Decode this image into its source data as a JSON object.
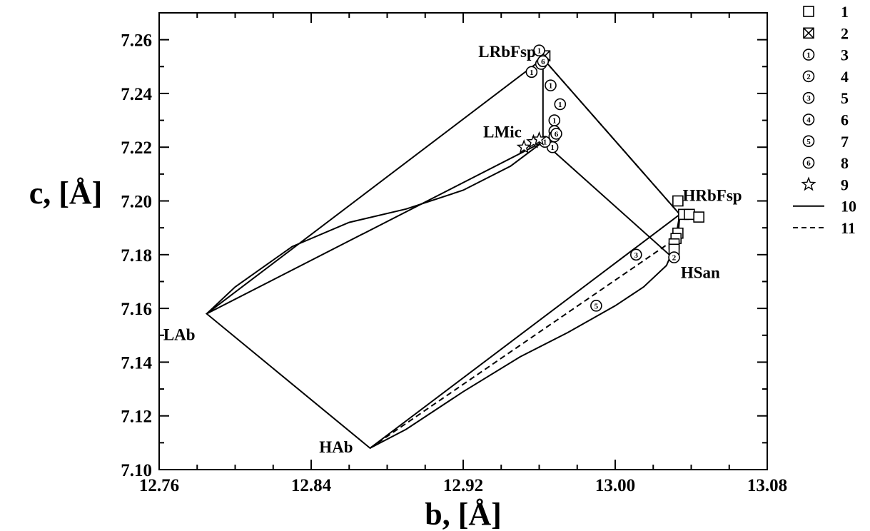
{
  "chart_data": {
    "type": "scatter",
    "xlabel": "b, [Å]",
    "ylabel": "c, [Å]",
    "xlim": [
      12.76,
      13.08
    ],
    "ylim": [
      7.1,
      7.27
    ],
    "x_major_ticks": [
      12.76,
      12.84,
      12.92,
      13.0,
      13.08
    ],
    "x_tick_labels": [
      "12.76",
      "12.84",
      "12.92",
      "13.00",
      "13.08"
    ],
    "y_major_ticks": [
      7.1,
      7.12,
      7.14,
      7.16,
      7.18,
      7.2,
      7.22,
      7.24,
      7.26
    ],
    "y_tick_labels": [
      "7.10",
      "7.12",
      "7.14",
      "7.16",
      "7.18",
      "7.20",
      "7.22",
      "7.24",
      "7.26"
    ],
    "grid": false,
    "legend_position": "right, outside plot",
    "end_member_labels": [
      {
        "text": "LRbFsp",
        "x": 12.962,
        "y": 7.253
      },
      {
        "text": "LMic",
        "x": 12.962,
        "y": 7.222
      },
      {
        "text": "HRbFsp",
        "x": 13.034,
        "y": 7.195
      },
      {
        "text": "HSan",
        "x": 13.03,
        "y": 7.179
      },
      {
        "text": "LAb",
        "x": 12.785,
        "y": 7.158
      },
      {
        "text": "HAb",
        "x": 12.871,
        "y": 7.108
      }
    ],
    "series": [
      {
        "name": "1",
        "marker": "square",
        "points": [
          [
            13.033,
            7.2
          ],
          [
            13.036,
            7.195
          ],
          [
            13.039,
            7.195
          ],
          [
            13.044,
            7.194
          ],
          [
            13.033,
            7.188
          ],
          [
            13.032,
            7.186
          ],
          [
            13.031,
            7.184
          ],
          [
            13.031,
            7.182
          ]
        ]
      },
      {
        "name": "2",
        "marker": "square-x",
        "points": [
          [
            12.963,
            7.254
          ]
        ]
      },
      {
        "name": "3",
        "marker": "circled",
        "digit": "1",
        "points": [
          [
            12.96,
            7.256
          ],
          [
            12.956,
            7.248
          ],
          [
            12.961,
            7.251
          ],
          [
            12.966,
            7.243
          ],
          [
            12.971,
            7.236
          ],
          [
            12.968,
            7.23
          ],
          [
            12.968,
            7.226
          ],
          [
            12.967,
            7.22
          ],
          [
            12.963,
            7.222
          ]
        ]
      },
      {
        "name": "4",
        "marker": "circled",
        "digit": "2",
        "points": [
          [
            13.031,
            7.179
          ]
        ]
      },
      {
        "name": "5",
        "marker": "circled",
        "digit": "3",
        "points": [
          [
            13.011,
            7.18
          ]
        ]
      },
      {
        "name": "6",
        "marker": "circled",
        "digit": "4",
        "points": [
          [
            12.968,
            7.224
          ]
        ]
      },
      {
        "name": "7",
        "marker": "circled",
        "digit": "5",
        "points": [
          [
            12.99,
            7.161
          ]
        ]
      },
      {
        "name": "8",
        "marker": "circled",
        "digit": "6",
        "points": [
          [
            12.962,
            7.252
          ],
          [
            12.969,
            7.225
          ]
        ]
      },
      {
        "name": "9",
        "marker": "star",
        "points": [
          [
            12.952,
            7.22
          ],
          [
            12.957,
            7.222
          ],
          [
            12.96,
            7.223
          ]
        ]
      },
      {
        "name": "10",
        "marker": "line-solid",
        "lines": [
          [
            [
              12.785,
              7.158
            ],
            [
              12.962,
              7.253
            ],
            [
              13.034,
              7.195
            ],
            [
              13.03,
              7.179
            ],
            [
              12.962,
              7.222
            ],
            [
              12.785,
              7.158
            ],
            [
              12.871,
              7.108
            ],
            [
              13.034,
              7.195
            ]
          ],
          [
            [
              12.962,
              7.253
            ],
            [
              12.962,
              7.232
            ],
            [
              12.962,
              7.222
            ]
          ],
          [
            [
              12.785,
              7.158
            ],
            [
              12.8,
              7.168
            ],
            [
              12.83,
              7.183
            ],
            [
              12.86,
              7.192
            ],
            [
              12.89,
              7.197
            ],
            [
              12.92,
              7.204
            ],
            [
              12.945,
              7.213
            ],
            [
              12.962,
              7.222
            ]
          ],
          [
            [
              12.871,
              7.108
            ],
            [
              12.89,
              7.115
            ],
            [
              12.92,
              7.129
            ],
            [
              12.95,
              7.142
            ],
            [
              12.975,
              7.151
            ],
            [
              13.0,
              7.161
            ],
            [
              13.015,
              7.168
            ],
            [
              13.027,
              7.176
            ],
            [
              13.033,
              7.186
            ],
            [
              13.034,
              7.195
            ]
          ]
        ]
      },
      {
        "name": "11",
        "marker": "line-dashed",
        "lines": [
          [
            [
              12.962,
              7.253
            ],
            [
              13.034,
              7.195
            ]
          ],
          [
            [
              12.871,
              7.108
            ],
            [
              13.034,
              7.187
            ]
          ]
        ]
      }
    ]
  }
}
